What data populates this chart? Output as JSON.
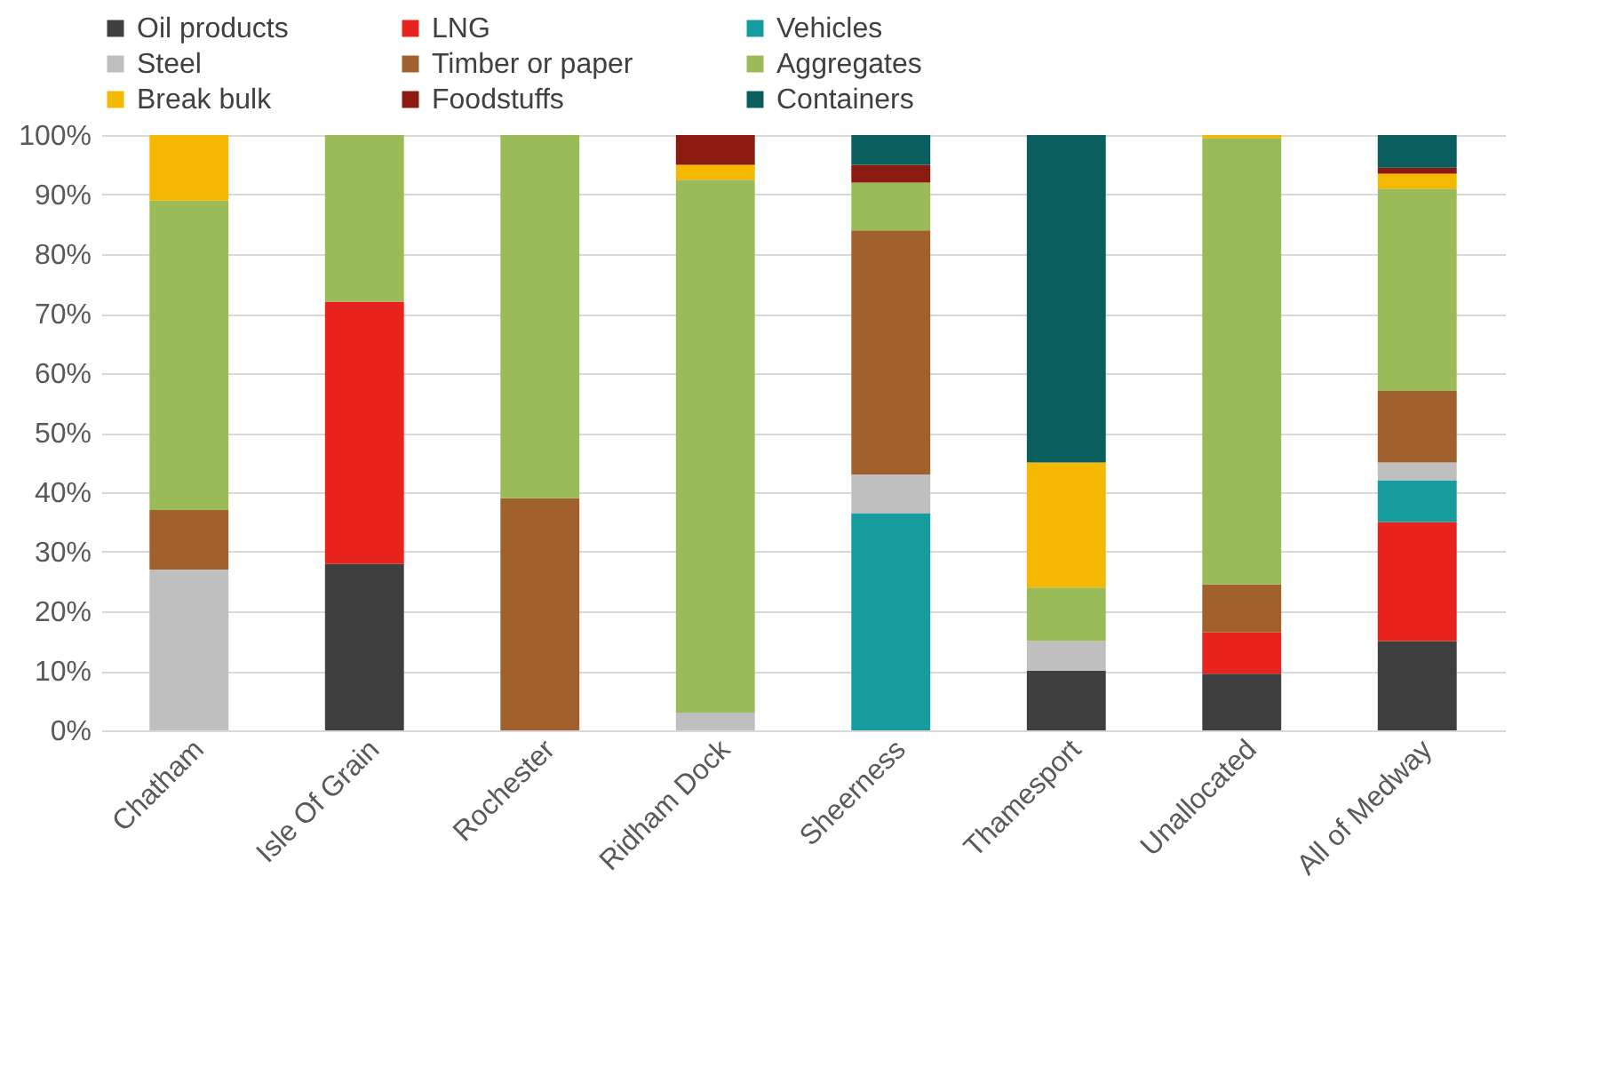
{
  "chart_data": {
    "type": "bar",
    "stacked": true,
    "categories": [
      "Chatham",
      "Isle Of Grain",
      "Rochester",
      "Ridham Dock",
      "Sheerness",
      "Thamesport",
      "Unallocated",
      "All of Medway"
    ],
    "series": [
      {
        "name": "Oil products",
        "color": "#3f3f3f",
        "values": [
          null,
          28,
          null,
          null,
          null,
          10,
          9.5,
          15
        ]
      },
      {
        "name": "LNG",
        "color": "#e8231e",
        "values": [
          null,
          44,
          null,
          null,
          null,
          null,
          7,
          20
        ]
      },
      {
        "name": "Vehicles",
        "color": "#169c9c",
        "values": [
          null,
          null,
          null,
          null,
          36.5,
          null,
          null,
          7
        ]
      },
      {
        "name": "Steel",
        "color": "#bfbfbf",
        "values": [
          27,
          null,
          null,
          3,
          6.5,
          5,
          null,
          3
        ]
      },
      {
        "name": "Timber or paper",
        "color": "#a0612d",
        "values": [
          10,
          null,
          39,
          null,
          41,
          null,
          8,
          12
        ]
      },
      {
        "name": "Aggregates",
        "color": "#9bbb59",
        "values": [
          52,
          28,
          61,
          89.5,
          8,
          9,
          75,
          34
        ]
      },
      {
        "name": "Break bulk",
        "color": "#f5b800",
        "values": [
          11,
          null,
          null,
          2.5,
          null,
          21,
          0.5,
          2.5
        ]
      },
      {
        "name": "Foodstuffs",
        "color": "#8b1a10",
        "values": [
          null,
          null,
          null,
          5,
          3,
          null,
          null,
          1
        ]
      },
      {
        "name": "Containers",
        "color": "#0b5e5e",
        "values": [
          null,
          null,
          null,
          null,
          5,
          55,
          null,
          5.5
        ]
      }
    ],
    "ylim": [
      0,
      100
    ],
    "yticks": [
      {
        "value": 0,
        "label": "0%"
      },
      {
        "value": 10,
        "label": "10%"
      },
      {
        "value": 20,
        "label": "20%"
      },
      {
        "value": 30,
        "label": "30%"
      },
      {
        "value": 40,
        "label": "40%"
      },
      {
        "value": 50,
        "label": "50%"
      },
      {
        "value": 60,
        "label": "60%"
      },
      {
        "value": 70,
        "label": "70%"
      },
      {
        "value": 80,
        "label": "80%"
      },
      {
        "value": 90,
        "label": "90%"
      },
      {
        "value": 100,
        "label": "100%"
      }
    ],
    "grid": "y",
    "legend": "top"
  }
}
